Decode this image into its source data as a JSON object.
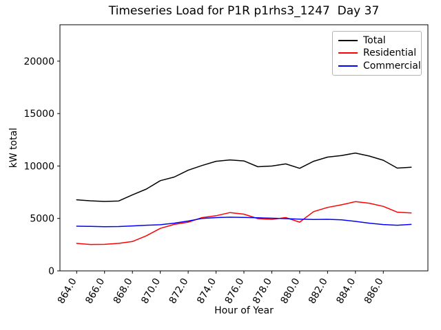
{
  "title": "Timeseries Load for P1R p1rhs3_1247  Day 37",
  "axes": {
    "xlabel": "Hour of Year",
    "ylabel": "kW total",
    "x_tick_labels": [
      "864.0",
      "866.0",
      "868.0",
      "870.0",
      "872.0",
      "874.0",
      "876.0",
      "878.0",
      "880.0",
      "882.0",
      "884.0",
      "886.0"
    ],
    "y_tick_labels": [
      "0",
      "5000",
      "10000",
      "15000",
      "20000"
    ]
  },
  "legend": {
    "entries": [
      {
        "label": "Total",
        "color": "#000000"
      },
      {
        "label": "Residential",
        "color": "#ff0000"
      },
      {
        "label": "Commercial",
        "color": "#0000ff"
      }
    ]
  },
  "chart_data": {
    "type": "line",
    "title": "Timeseries Load for P1R p1rhs3_1247  Day 37",
    "xlabel": "Hour of Year",
    "ylabel": "kW total",
    "x": [
      864,
      865,
      866,
      867,
      868,
      869,
      870,
      871,
      872,
      873,
      874,
      875,
      876,
      877,
      878,
      879,
      880,
      881,
      882,
      883,
      884,
      885,
      886,
      887,
      888
    ],
    "series": [
      {
        "name": "Total",
        "color": "#000000",
        "values": [
          6780,
          6680,
          6620,
          6660,
          7250,
          7800,
          8600,
          8950,
          9600,
          10050,
          10450,
          10580,
          10480,
          9930,
          10000,
          10200,
          9780,
          10450,
          10850,
          11000,
          11240,
          10950,
          10550,
          9800,
          9880
        ]
      },
      {
        "name": "Residential",
        "color": "#ff0000",
        "values": [
          2620,
          2520,
          2530,
          2620,
          2800,
          3350,
          4050,
          4430,
          4650,
          5080,
          5260,
          5560,
          5410,
          4980,
          4910,
          5080,
          4650,
          5650,
          6050,
          6300,
          6600,
          6450,
          6150,
          5600,
          5520
        ]
      },
      {
        "name": "Commercial",
        "color": "#0000ff",
        "values": [
          4260,
          4240,
          4210,
          4230,
          4290,
          4350,
          4400,
          4550,
          4750,
          5000,
          5080,
          5120,
          5100,
          5060,
          5020,
          4980,
          4930,
          4900,
          4920,
          4870,
          4720,
          4550,
          4420,
          4350,
          4430
        ]
      }
    ],
    "x_ticks": [
      864,
      866,
      868,
      870,
      872,
      874,
      876,
      878,
      880,
      882,
      884,
      886
    ],
    "y_ticks": [
      0,
      5000,
      10000,
      15000,
      20000
    ],
    "xlim": [
      862.8,
      889.2
    ],
    "ylim": [
      0,
      23470
    ],
    "grid": false,
    "legend_position": "upper right",
    "x_tick_rotation_deg": 60
  }
}
